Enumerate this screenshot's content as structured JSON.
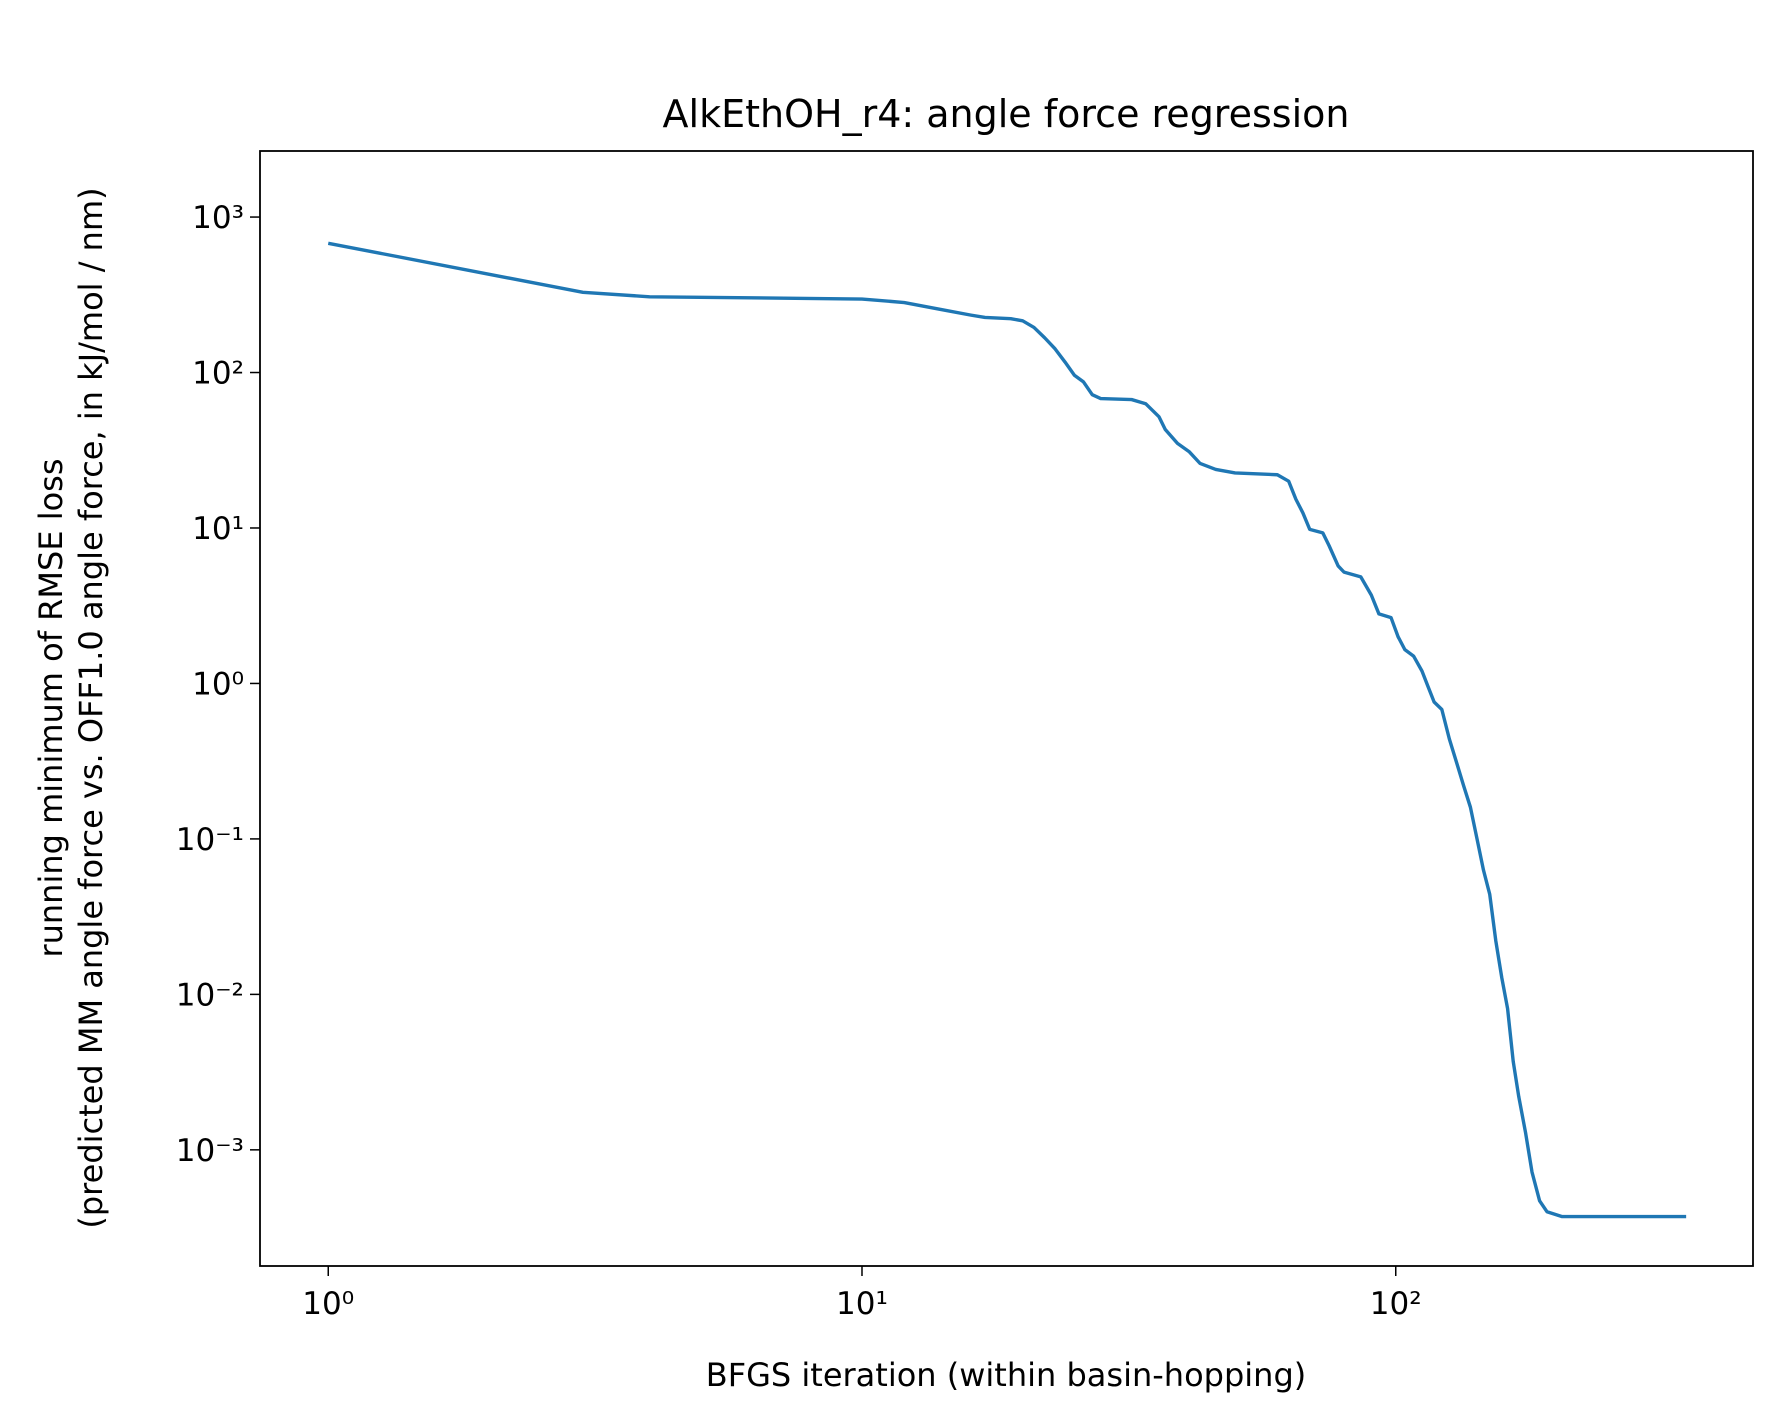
{
  "chart_data": {
    "type": "line",
    "title": "AlkEthOH_r4: angle force regression",
    "xlabel": "BFGS iteration (within basin-hopping)",
    "ylabel": [
      "running minimum of RMSE loss",
      "(predicted MM angle force vs. OFF1.0 angle force, in kJ/mol / nm)"
    ],
    "xscale": "log",
    "yscale": "log",
    "xlim": [
      0.745,
      467
    ],
    "ylim": [
      0.000179,
      2660
    ],
    "xticks": [
      {
        "value": 1,
        "label": "10⁰"
      },
      {
        "value": 10,
        "label": "10¹"
      },
      {
        "value": 100,
        "label": "10²"
      }
    ],
    "yticks": [
      {
        "value": 0.001,
        "label": "10⁻³"
      },
      {
        "value": 0.01,
        "label": "10⁻²"
      },
      {
        "value": 0.1,
        "label": "10⁻¹"
      },
      {
        "value": 1,
        "label": "10⁰"
      },
      {
        "value": 10,
        "label": "10¹"
      },
      {
        "value": 100,
        "label": "10²"
      },
      {
        "value": 1000,
        "label": "10³"
      }
    ],
    "grid": false,
    "x": [
      1,
      3,
      4,
      10,
      12,
      14,
      16,
      17,
      19,
      20,
      21,
      22,
      23,
      24,
      25,
      26,
      27,
      28,
      32,
      34,
      36,
      37,
      39,
      41,
      43,
      46,
      50,
      60,
      63,
      65,
      67,
      69,
      73,
      75,
      78,
      80,
      86,
      90,
      93,
      98,
      101,
      104,
      108,
      112,
      115,
      118,
      122,
      126,
      130,
      134,
      138,
      142,
      146,
      150,
      154,
      158,
      162,
      166,
      170,
      175,
      180,
      186,
      192,
      205,
      350
    ],
    "series": [
      {
        "name": "running minimum",
        "color": "#1f77b4",
        "values": [
          678,
          328,
          307,
          297,
          282,
          255,
          234,
          226,
          222,
          215,
          195,
          167,
          142,
          117,
          96,
          87,
          72,
          68,
          67,
          63,
          52,
          43,
          35,
          31,
          26,
          23.8,
          22.6,
          22,
          20,
          15.3,
          12.5,
          9.8,
          9.3,
          7.7,
          5.7,
          5.2,
          4.85,
          3.7,
          2.8,
          2.65,
          2.0,
          1.65,
          1.5,
          1.2,
          0.95,
          0.76,
          0.68,
          0.44,
          0.31,
          0.22,
          0.16,
          0.1,
          0.063,
          0.044,
          0.022,
          0.0128,
          0.0081,
          0.0037,
          0.0022,
          0.0013,
          0.00072,
          0.00047,
          0.0004,
          0.000372,
          0.000372
        ]
      }
    ]
  }
}
